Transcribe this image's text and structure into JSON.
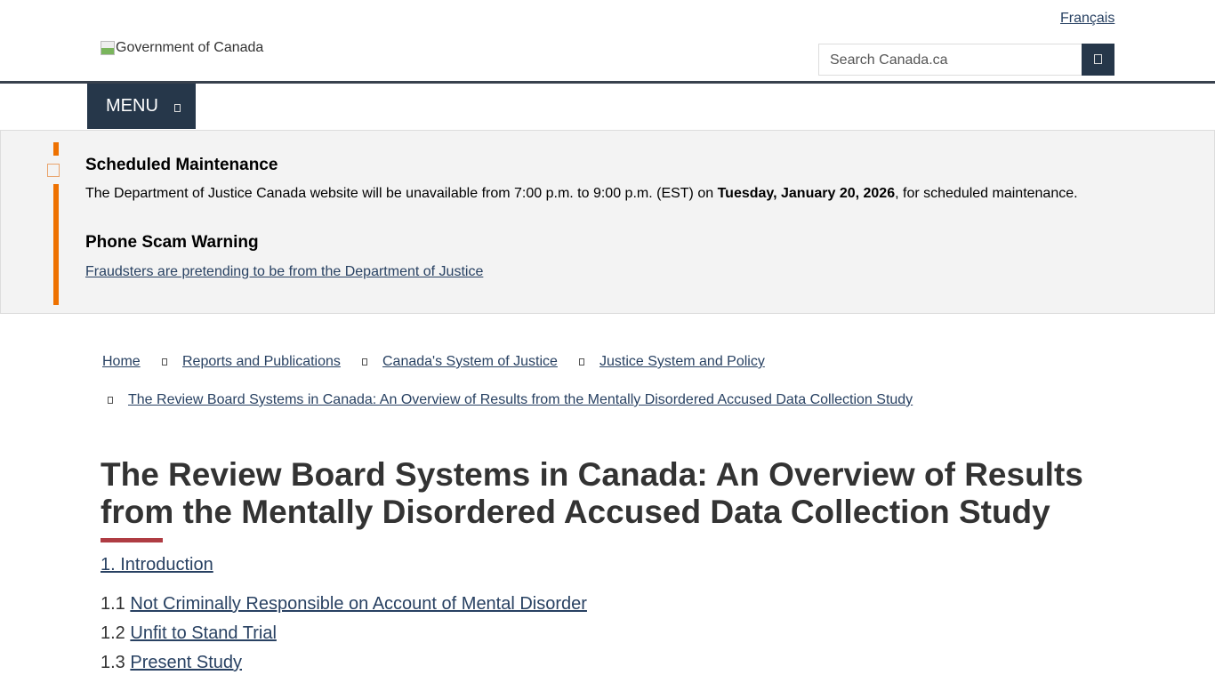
{
  "header": {
    "language_link": "Français",
    "logo_alt": "Government of Canada",
    "search_placeholder": "Search Canada.ca",
    "search_icon": "search-icon",
    "menu_label": "MENU"
  },
  "alerts": [
    {
      "title": "Scheduled Maintenance",
      "text_before": "The Department of Justice Canada website will be unavailable from 7:00 p.m. to 9:00 p.m. (EST) on ",
      "text_bold": "Tuesday, January 20, 2026",
      "text_after": ", for scheduled maintenance."
    },
    {
      "title": "Phone Scam Warning",
      "link": "Fraudsters are pretending to be from the Department of Justice"
    }
  ],
  "breadcrumb": [
    "Home",
    "Reports and Publications",
    "Canada's System of Justice",
    "Justice System and Policy",
    "The Review Board Systems in Canada: An Overview of Results from the Mentally Disordered Accused Data Collection Study"
  ],
  "page_title": "The Review Board Systems in Canada: An Overview of Results from the Mentally Disordered Accused Data Collection Study",
  "toc": {
    "section": "1. Introduction",
    "items": [
      {
        "num": "1.1",
        "label": "Not Criminally Responsible on Account of Mental Disorder"
      },
      {
        "num": "1.2",
        "label": "Unfit to Stand Trial"
      },
      {
        "num": "1.3",
        "label": "Present Study"
      }
    ]
  },
  "colors": {
    "brand": "#26374a",
    "alert": "#ee7100",
    "title_underline": "#af3c43",
    "link": "#284162"
  }
}
